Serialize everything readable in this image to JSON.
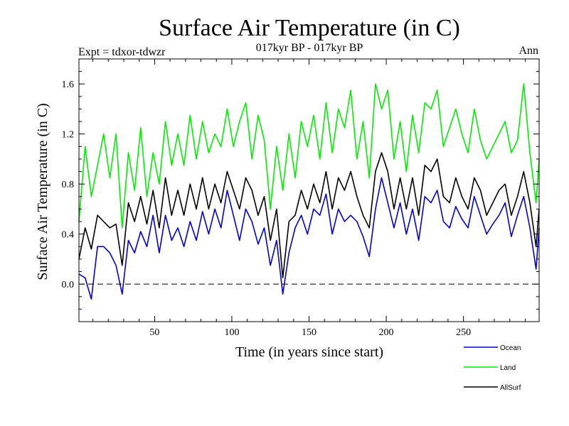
{
  "header": {
    "title": "Surface Air Temperature (in C)",
    "left_label": "Expt = tdxor-tdwzr",
    "center_label": "017kyr BP - 017kyr BP",
    "right_label": "Ann"
  },
  "chart_data": {
    "type": "line",
    "title": "Surface Air Temperature (in C)",
    "xlabel": "Time (in years since start)",
    "ylabel": "Surface Air Temperature (in C)",
    "xlim": [
      1,
      299
    ],
    "ylim": [
      -0.3,
      1.8
    ],
    "xticks": [
      50,
      100,
      150,
      200,
      250
    ],
    "yticks": [
      0.0,
      0.4,
      0.8,
      1.2,
      1.6
    ],
    "ytick_labels": [
      "0.0",
      "0.4",
      "0.8",
      "1.2",
      "1.6"
    ],
    "zero_line": "dashed",
    "grid": false,
    "legend_position": "bottom-right",
    "series": [
      {
        "name": "Ocean",
        "color": "#0000dd",
        "x": [
          1,
          5,
          9,
          13,
          17,
          21,
          25,
          29,
          33,
          37,
          41,
          45,
          49,
          53,
          57,
          61,
          65,
          69,
          73,
          77,
          81,
          85,
          89,
          93,
          97,
          101,
          105,
          109,
          113,
          117,
          121,
          125,
          129,
          133,
          137,
          141,
          145,
          149,
          153,
          157,
          161,
          165,
          169,
          173,
          177,
          181,
          185,
          189,
          193,
          197,
          201,
          205,
          209,
          213,
          217,
          221,
          225,
          229,
          233,
          237,
          241,
          245,
          249,
          253,
          257,
          261,
          265,
          269,
          273,
          277,
          281,
          285,
          289,
          293,
          297,
          299
        ],
        "y": [
          0.08,
          0.05,
          -0.12,
          0.3,
          0.3,
          0.25,
          0.15,
          -0.08,
          0.35,
          0.25,
          0.42,
          0.3,
          0.55,
          0.25,
          0.55,
          0.35,
          0.45,
          0.3,
          0.5,
          0.35,
          0.58,
          0.4,
          0.6,
          0.45,
          0.75,
          0.55,
          0.35,
          0.6,
          0.5,
          0.32,
          0.45,
          0.15,
          0.35,
          -0.08,
          0.25,
          0.45,
          0.55,
          0.4,
          0.6,
          0.55,
          0.72,
          0.4,
          0.6,
          0.5,
          0.55,
          0.5,
          0.38,
          0.22,
          0.6,
          0.85,
          0.65,
          0.45,
          0.65,
          0.4,
          0.6,
          0.35,
          0.7,
          0.65,
          0.75,
          0.5,
          0.45,
          0.62,
          0.52,
          0.45,
          0.7,
          0.55,
          0.4,
          0.48,
          0.55,
          0.65,
          0.38,
          0.55,
          0.7,
          0.45,
          0.12,
          0.45
        ]
      },
      {
        "name": "Land",
        "color": "#00ee00",
        "x": [
          1,
          5,
          9,
          13,
          17,
          21,
          25,
          29,
          33,
          37,
          41,
          45,
          49,
          53,
          57,
          61,
          65,
          69,
          73,
          77,
          81,
          85,
          89,
          93,
          97,
          101,
          105,
          109,
          113,
          117,
          121,
          125,
          129,
          133,
          137,
          141,
          145,
          149,
          153,
          157,
          161,
          165,
          169,
          173,
          177,
          181,
          185,
          189,
          193,
          197,
          201,
          205,
          209,
          213,
          217,
          221,
          225,
          229,
          233,
          237,
          241,
          245,
          249,
          253,
          257,
          261,
          265,
          269,
          273,
          277,
          281,
          285,
          289,
          293,
          297,
          299
        ],
        "y": [
          0.5,
          1.1,
          0.7,
          0.95,
          1.2,
          0.85,
          1.2,
          0.45,
          1.05,
          0.75,
          1.25,
          0.7,
          1.05,
          0.8,
          1.3,
          0.95,
          1.2,
          0.95,
          1.35,
          1.0,
          1.3,
          1.05,
          1.2,
          1.1,
          1.4,
          1.1,
          1.3,
          1.45,
          1.0,
          1.35,
          1.15,
          0.6,
          1.1,
          0.75,
          1.2,
          0.85,
          1.3,
          1.1,
          1.35,
          1.0,
          1.45,
          1.05,
          1.4,
          1.25,
          1.55,
          1.0,
          1.3,
          0.85,
          1.6,
          1.4,
          1.55,
          1.0,
          1.3,
          0.9,
          1.35,
          1.05,
          1.45,
          1.4,
          1.55,
          1.1,
          1.25,
          1.4,
          1.2,
          1.05,
          1.4,
          1.15,
          1.0,
          1.1,
          1.2,
          1.3,
          1.05,
          1.15,
          1.6,
          1.05,
          0.65,
          1.0
        ]
      },
      {
        "name": "AllSurf",
        "color": "#000000",
        "x": [
          1,
          5,
          9,
          13,
          17,
          21,
          25,
          29,
          33,
          37,
          41,
          45,
          49,
          53,
          57,
          61,
          65,
          69,
          73,
          77,
          81,
          85,
          89,
          93,
          97,
          101,
          105,
          109,
          113,
          117,
          121,
          125,
          129,
          133,
          137,
          141,
          145,
          149,
          153,
          157,
          161,
          165,
          169,
          173,
          177,
          181,
          185,
          189,
          193,
          197,
          201,
          205,
          209,
          213,
          217,
          221,
          225,
          229,
          233,
          237,
          241,
          245,
          249,
          253,
          257,
          261,
          265,
          269,
          273,
          277,
          281,
          285,
          289,
          293,
          297,
          299
        ],
        "y": [
          0.2,
          0.45,
          0.28,
          0.55,
          0.5,
          0.45,
          0.48,
          0.15,
          0.65,
          0.5,
          0.7,
          0.48,
          0.75,
          0.45,
          0.85,
          0.55,
          0.75,
          0.55,
          0.8,
          0.6,
          0.85,
          0.6,
          0.8,
          0.65,
          0.9,
          0.75,
          0.6,
          0.85,
          0.75,
          0.55,
          0.7,
          0.35,
          0.6,
          0.05,
          0.5,
          0.55,
          0.75,
          0.6,
          0.8,
          0.65,
          0.9,
          0.6,
          0.85,
          0.75,
          0.9,
          0.7,
          0.55,
          0.45,
          0.9,
          1.05,
          0.9,
          0.6,
          0.85,
          0.6,
          0.85,
          0.55,
          0.95,
          0.9,
          1.0,
          0.7,
          0.65,
          0.85,
          0.7,
          0.6,
          0.85,
          0.75,
          0.55,
          0.65,
          0.75,
          0.8,
          0.55,
          0.7,
          0.9,
          0.65,
          0.3,
          0.6
        ]
      }
    ]
  }
}
